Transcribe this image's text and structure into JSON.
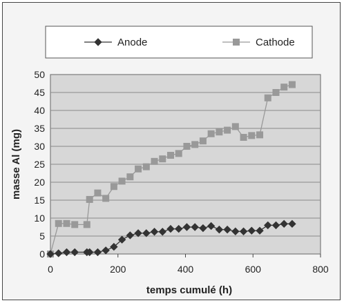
{
  "chart_data": {
    "type": "line",
    "xlabel": "temps cumulé (h)",
    "ylabel": "masse Al (mg)",
    "xlim": [
      0,
      800
    ],
    "ylim": [
      0,
      50
    ],
    "xticks": [
      0,
      200,
      400,
      600,
      800
    ],
    "yticks": [
      0,
      5,
      10,
      15,
      20,
      25,
      30,
      35,
      40,
      45,
      50
    ],
    "grid": "horizontal",
    "legend_position": "top",
    "series": [
      {
        "name": "Anode",
        "marker": "diamond",
        "color": "#333333",
        "x": [
          0,
          24,
          48,
          72,
          108,
          116,
          140,
          164,
          188,
          212,
          236,
          260,
          284,
          308,
          332,
          356,
          380,
          404,
          428,
          452,
          476,
          500,
          524,
          548,
          572,
          596,
          620,
          644,
          668,
          692,
          716
        ],
        "y": [
          0,
          0.2,
          0.5,
          0.5,
          0.5,
          0.5,
          0.5,
          1.0,
          2.0,
          4.0,
          5.2,
          5.8,
          5.8,
          6.2,
          6.2,
          7.0,
          7.0,
          7.5,
          7.5,
          7.2,
          7.8,
          6.8,
          6.8,
          6.3,
          6.3,
          6.5,
          6.5,
          8.0,
          8.0,
          8.4,
          8.4
        ]
      },
      {
        "name": "Cathode",
        "marker": "square",
        "color": "#999999",
        "x": [
          0,
          24,
          48,
          72,
          108,
          116,
          140,
          164,
          188,
          212,
          236,
          260,
          284,
          308,
          332,
          356,
          380,
          404,
          428,
          452,
          476,
          500,
          524,
          548,
          572,
          596,
          620,
          644,
          668,
          692,
          716
        ],
        "y": [
          0,
          8.5,
          8.5,
          8.2,
          8.2,
          15.2,
          17.0,
          15.5,
          18.8,
          20.3,
          21.5,
          23.7,
          24.3,
          25.8,
          26.5,
          27.5,
          28.0,
          30.0,
          30.5,
          31.5,
          33.5,
          34.0,
          34.5,
          35.5,
          32.5,
          33.0,
          33.2,
          43.5,
          45.0,
          46.5,
          47.2
        ]
      }
    ]
  }
}
